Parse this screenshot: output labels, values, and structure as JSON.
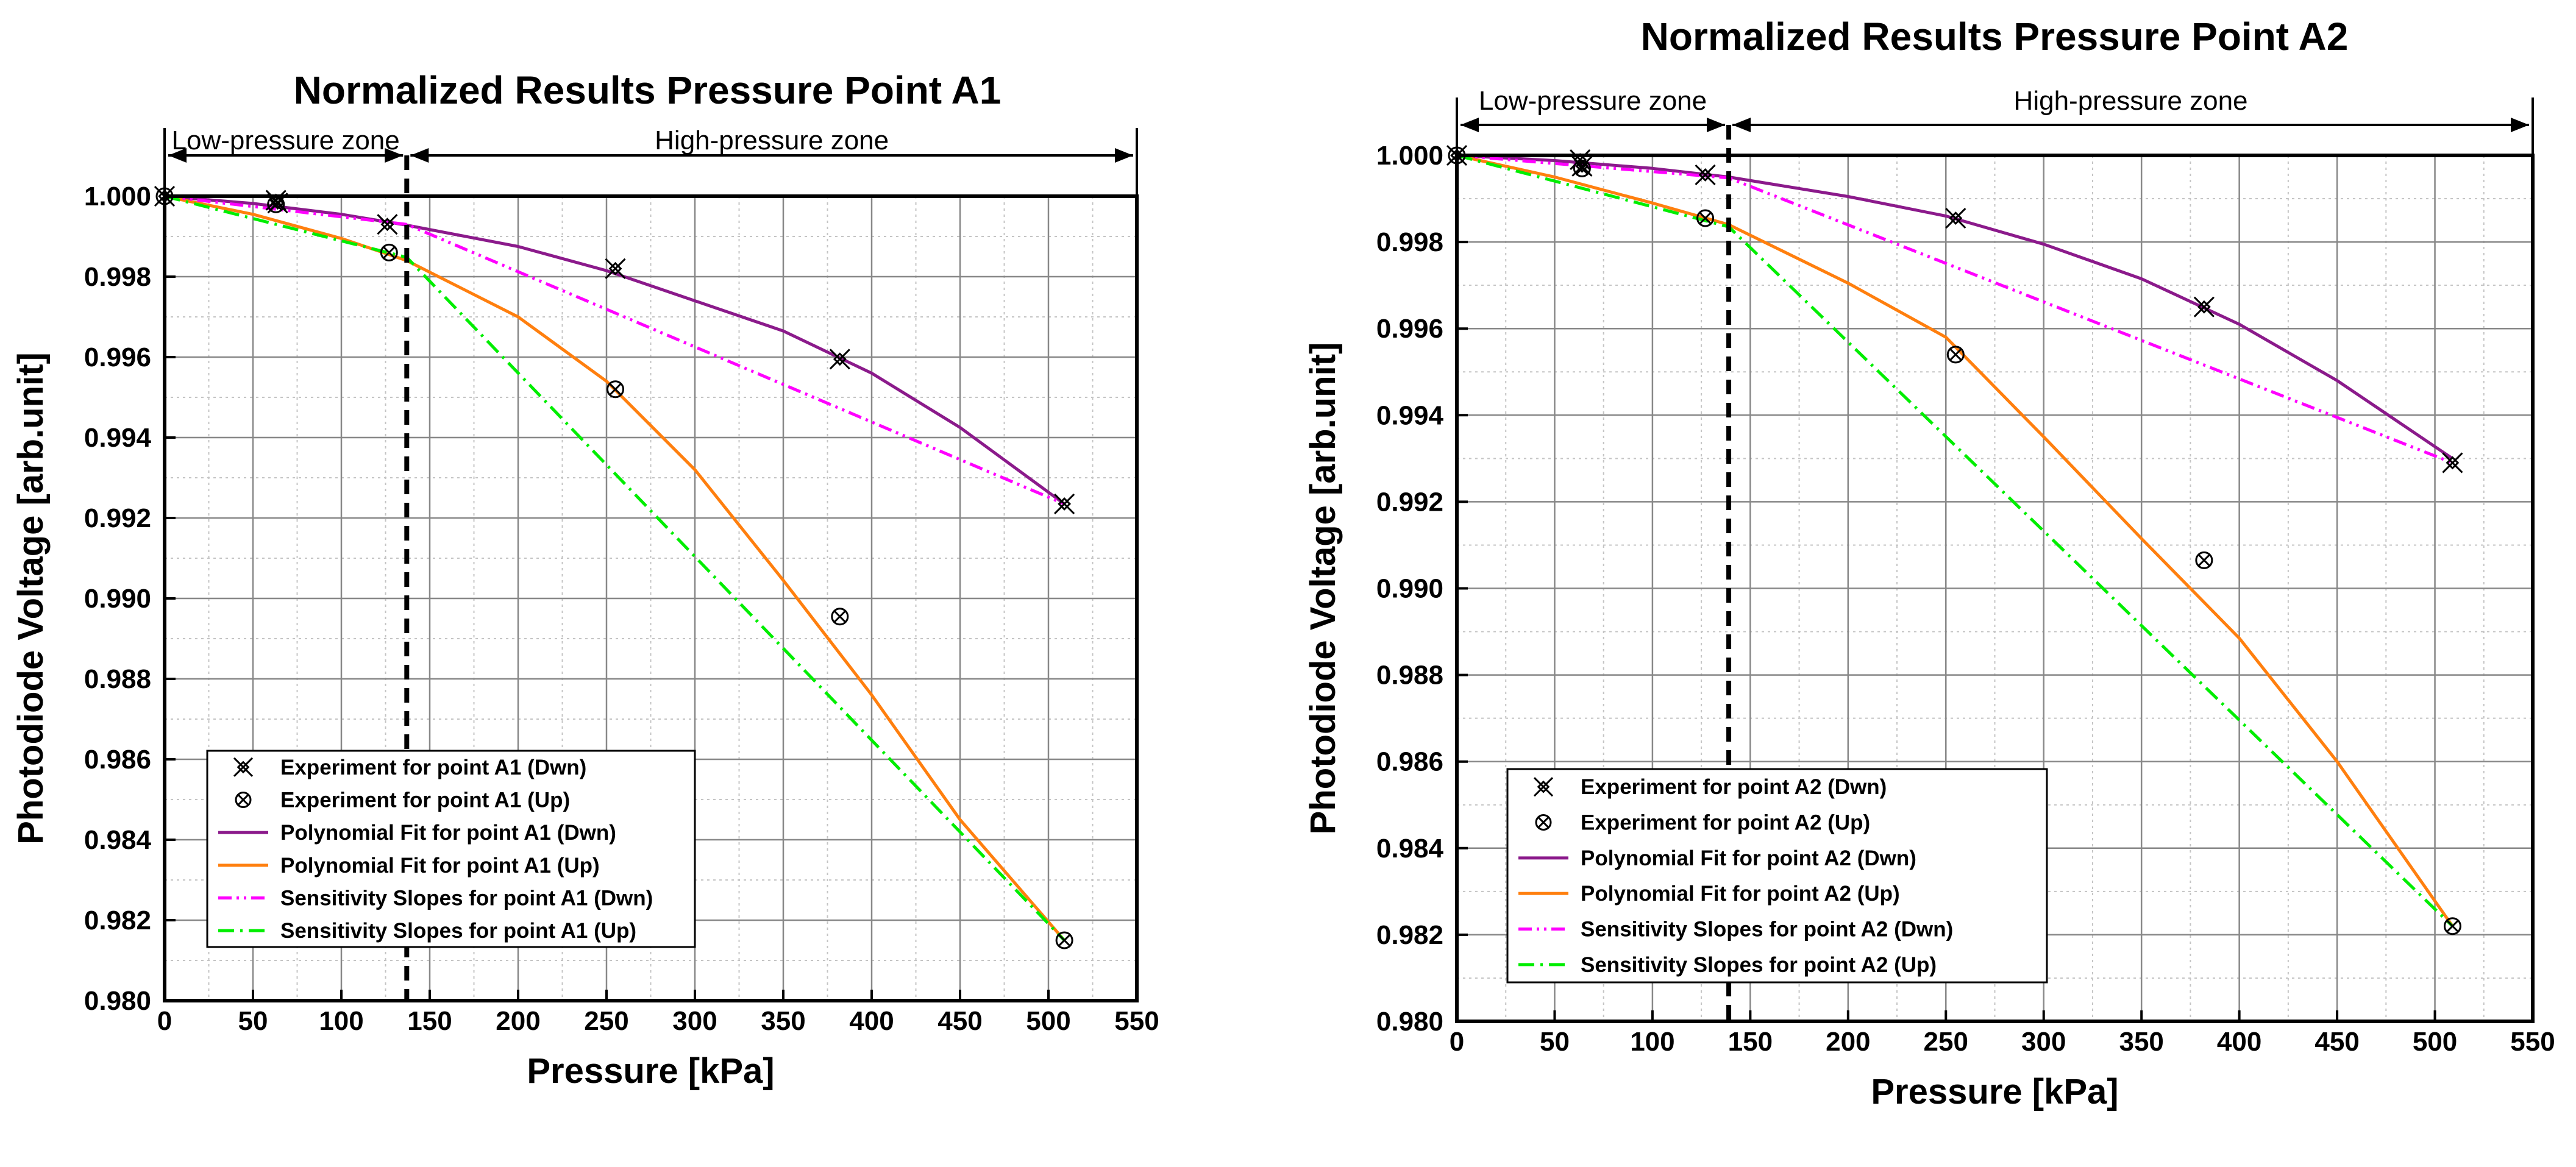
{
  "chart_data": [
    {
      "type": "scatter",
      "title": "Normalized Results Pressure Point A1",
      "xlabel": "Pressure [kPa]",
      "ylabel": "Photodiode Voltage [arb.unit]",
      "xlim": [
        0,
        550
      ],
      "ylim": [
        0.98,
        1.0
      ],
      "x_ticks": [
        "0",
        "50",
        "100",
        "150",
        "200",
        "250",
        "300",
        "350",
        "400",
        "450",
        "500",
        "550"
      ],
      "y_ticks": [
        "0.980",
        "0.982",
        "0.984",
        "0.986",
        "0.988",
        "0.990",
        "0.992",
        "0.994",
        "0.996",
        "0.998",
        "1.000"
      ],
      "grid": true,
      "legend_position": "bottom-left",
      "zone_divider_x": 137,
      "zones": [
        {
          "label": "Low-pressure zone",
          "from": 0,
          "to": 137
        },
        {
          "label": "High-pressure zone",
          "from": 137,
          "to": 550
        }
      ],
      "series": [
        {
          "name": "Experiment for point A1 (Dwn)",
          "kind": "marker",
          "marker": "dwn",
          "color": "#000000",
          "points": [
            [
              0,
              1.0
            ],
            [
              63,
              0.9999
            ],
            [
              64,
              0.99983
            ],
            [
              126,
              0.9993
            ],
            [
              255,
              0.9982
            ],
            [
              382,
              0.99595
            ],
            [
              509,
              0.99235
            ]
          ]
        },
        {
          "name": "Experiment for point A1 (Up)",
          "kind": "marker",
          "marker": "up",
          "color": "#000000",
          "points": [
            [
              0,
              1.0
            ],
            [
              63,
              0.9998
            ],
            [
              127,
              0.9986
            ],
            [
              255,
              0.9952
            ],
            [
              382,
              0.98955
            ],
            [
              509,
              0.9815
            ]
          ]
        },
        {
          "name": "Polynomial Fit for point A1 (Dwn)",
          "kind": "line",
          "style": "solid",
          "color": "#8b1a8b",
          "points": [
            [
              0,
              1.0
            ],
            [
              50,
              0.99982
            ],
            [
              100,
              0.99955
            ],
            [
              137,
              0.99928
            ],
            [
              200,
              0.99875
            ],
            [
              250,
              0.99815
            ],
            [
              300,
              0.9974
            ],
            [
              350,
              0.99665
            ],
            [
              400,
              0.9956
            ],
            [
              450,
              0.99425
            ],
            [
              509,
              0.99235
            ]
          ]
        },
        {
          "name": "Polynomial Fit for point A1 (Up)",
          "kind": "line",
          "style": "solid",
          "color": "#ff7f0e",
          "points": [
            [
              0,
              1.0
            ],
            [
              50,
              0.99955
            ],
            [
              100,
              0.99895
            ],
            [
              137,
              0.9984
            ],
            [
              200,
              0.997
            ],
            [
              250,
              0.9954
            ],
            [
              300,
              0.9932
            ],
            [
              350,
              0.99045
            ],
            [
              400,
              0.9876
            ],
            [
              450,
              0.9845
            ],
            [
              509,
              0.9815
            ]
          ]
        },
        {
          "name": "Sensitivity Slopes for point A1 (Dwn)",
          "kind": "line",
          "style": "dashdotdot",
          "color": "#ff00ff",
          "points": [
            [
              0,
              1.0
            ],
            [
              137,
              0.9993
            ],
            [
              509,
              0.99235
            ]
          ]
        },
        {
          "name": "Sensitivity Slopes for point A1 (Up)",
          "kind": "line",
          "style": "dashdot",
          "color": "#00ee00",
          "points": [
            [
              0,
              1.0
            ],
            [
              137,
              0.99848
            ],
            [
              509,
              0.9815
            ]
          ]
        }
      ]
    },
    {
      "type": "scatter",
      "title": "Normalized Results Pressure Point A2",
      "xlabel": "Pressure [kPa]",
      "ylabel": "Photodiode Voltage [arb.unit]",
      "xlim": [
        0,
        550
      ],
      "ylim": [
        0.98,
        1.0
      ],
      "x_ticks": [
        "0",
        "50",
        "100",
        "150",
        "200",
        "250",
        "300",
        "350",
        "400",
        "450",
        "500",
        "550"
      ],
      "y_ticks": [
        "0.980",
        "0.982",
        "0.984",
        "0.986",
        "0.988",
        "0.990",
        "0.992",
        "0.994",
        "0.996",
        "0.998",
        "1.000"
      ],
      "grid": true,
      "legend_position": "bottom-left",
      "zone_divider_x": 139,
      "zones": [
        {
          "label": "Low-pressure zone",
          "from": 0,
          "to": 139
        },
        {
          "label": "High-pressure zone",
          "from": 139,
          "to": 550
        }
      ],
      "series": [
        {
          "name": "Experiment for point A2 (Dwn)",
          "kind": "marker",
          "marker": "dwn",
          "color": "#000000",
          "points": [
            [
              0,
              1.0
            ],
            [
              63,
              0.9999
            ],
            [
              64,
              0.99975
            ],
            [
              127,
              0.99955
            ],
            [
              255,
              0.99855
            ],
            [
              382,
              0.9965
            ],
            [
              509,
              0.9929
            ]
          ]
        },
        {
          "name": "Experiment for point A2 (Up)",
          "kind": "marker",
          "marker": "up",
          "color": "#000000",
          "points": [
            [
              0,
              1.0
            ],
            [
              64,
              0.9997
            ],
            [
              127,
              0.99855
            ],
            [
              255,
              0.9954
            ],
            [
              382,
              0.99065
            ],
            [
              509,
              0.9822
            ]
          ]
        },
        {
          "name": "Polynomial Fit for point A2 (Dwn)",
          "kind": "line",
          "style": "solid",
          "color": "#8b1a8b",
          "points": [
            [
              0,
              1.0
            ],
            [
              50,
              0.99988
            ],
            [
              100,
              0.9997
            ],
            [
              139,
              0.9995
            ],
            [
              200,
              0.99905
            ],
            [
              250,
              0.9986
            ],
            [
              300,
              0.99795
            ],
            [
              350,
              0.99715
            ],
            [
              400,
              0.9961
            ],
            [
              450,
              0.9948
            ],
            [
              509,
              0.993
            ]
          ]
        },
        {
          "name": "Polynomial Fit for point A2 (Up)",
          "kind": "line",
          "style": "solid",
          "color": "#ff7f0e",
          "points": [
            [
              0,
              1.0
            ],
            [
              50,
              0.9995
            ],
            [
              100,
              0.9989
            ],
            [
              139,
              0.9984
            ],
            [
              200,
              0.99705
            ],
            [
              250,
              0.9958
            ],
            [
              300,
              0.9935
            ],
            [
              350,
              0.99115
            ],
            [
              400,
              0.98885
            ],
            [
              450,
              0.986
            ],
            [
              509,
              0.9822
            ]
          ]
        },
        {
          "name": "Sensitivity Slopes for point A2 (Dwn)",
          "kind": "line",
          "style": "dashdotdot",
          "color": "#ff00ff",
          "points": [
            [
              0,
              1.0
            ],
            [
              139,
              0.99948
            ],
            [
              509,
              0.9929
            ]
          ]
        },
        {
          "name": "Sensitivity Slopes for point A2 (Up)",
          "kind": "line",
          "style": "dashdot",
          "color": "#00ee00",
          "points": [
            [
              0,
              1.0
            ],
            [
              139,
              0.99835
            ],
            [
              509,
              0.9822
            ]
          ]
        }
      ]
    }
  ]
}
